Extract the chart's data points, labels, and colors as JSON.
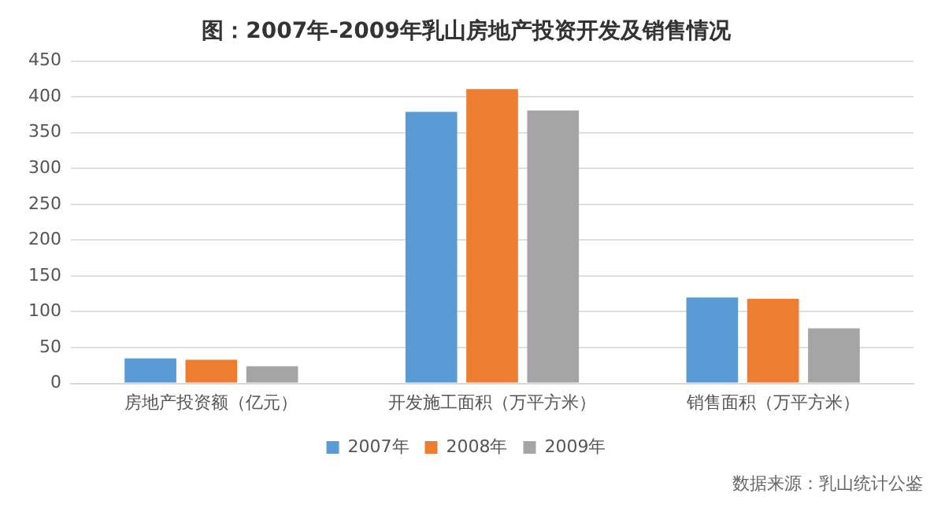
{
  "chart_data": {
    "type": "bar",
    "title": "图：2007年-2009年乳山房地产投资开发及销售情况",
    "categories": [
      "房地产投资额（亿元）",
      "开发施工面积（万平方米）",
      "销售面积（万平方米）"
    ],
    "series": [
      {
        "name": "2007年",
        "color": "#5b9bd5",
        "values": [
          35,
          379,
          120
        ]
      },
      {
        "name": "2008年",
        "color": "#ed7d31",
        "values": [
          33,
          411,
          118
        ]
      },
      {
        "name": "2009年",
        "color": "#a5a5a5",
        "values": [
          24,
          381,
          77
        ]
      }
    ],
    "ylim": [
      0,
      450
    ],
    "yticks": [
      0,
      50,
      100,
      150,
      200,
      250,
      300,
      350,
      400,
      450
    ],
    "grid": "y",
    "legend": "bottom",
    "annotations": [
      "数据来源：乳山统计公鉴"
    ]
  }
}
